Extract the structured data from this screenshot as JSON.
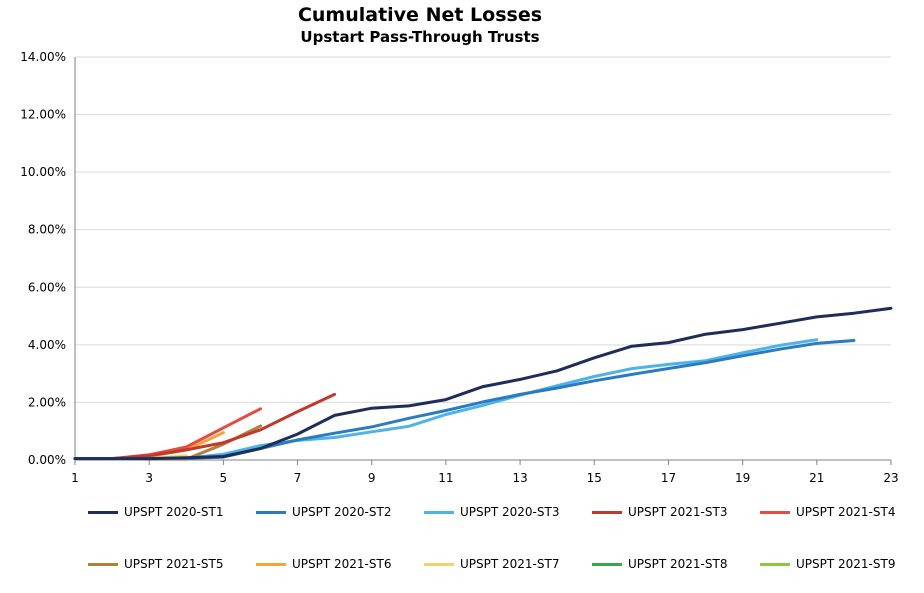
{
  "chart_data": {
    "type": "line",
    "title": "Cumulative Net Losses",
    "subtitle": "Upstart Pass-Through Trusts",
    "xlabel": "",
    "ylabel": "",
    "xlim": [
      1,
      23
    ],
    "ylim": [
      0,
      0.14
    ],
    "x_ticks": [
      "1",
      "3",
      "5",
      "7",
      "9",
      "11",
      "13",
      "15",
      "17",
      "19",
      "21",
      "23"
    ],
    "y_ticks": [
      "0.00%",
      "2.00%",
      "4.00%",
      "6.00%",
      "8.00%",
      "10.00%",
      "12.00%",
      "14.00%"
    ],
    "grid": "horizontal",
    "legend_position": "bottom",
    "series": [
      {
        "name": "UPSPT 2020-ST1",
        "color": "#1f2d5a",
        "x": [
          1,
          2,
          3,
          4,
          5,
          6,
          7,
          8,
          9,
          10,
          11,
          12,
          13,
          14,
          15,
          16,
          17,
          18,
          19,
          20,
          21,
          22,
          23
        ],
        "y": [
          0.0005,
          0.0005,
          0.0005,
          0.0008,
          0.0012,
          0.004,
          0.009,
          0.0155,
          0.018,
          0.0188,
          0.021,
          0.0255,
          0.028,
          0.031,
          0.0355,
          0.0395,
          0.0408,
          0.0437,
          0.0453,
          0.0475,
          0.0497,
          0.051,
          0.0527
        ]
      },
      {
        "name": "UPSPT 2020-ST2",
        "color": "#2b7bc0",
        "x": [
          1,
          2,
          3,
          4,
          5,
          6,
          7,
          8,
          9,
          10,
          11,
          12,
          13,
          14,
          15,
          16,
          17,
          18,
          19,
          20,
          21,
          22
        ],
        "y": [
          0.0005,
          0.0005,
          0.0005,
          0.0006,
          0.001,
          0.004,
          0.007,
          0.0093,
          0.0115,
          0.0145,
          0.0172,
          0.0202,
          0.0228,
          0.025,
          0.0275,
          0.0297,
          0.0318,
          0.0338,
          0.0362,
          0.0385,
          0.0405,
          0.0415
        ]
      },
      {
        "name": "UPSPT 2020-ST3",
        "color": "#4fb3e8",
        "x": [
          1,
          2,
          3,
          4,
          5,
          6,
          7,
          8,
          9,
          10,
          11,
          12,
          13,
          14,
          15,
          16,
          17,
          18,
          19,
          20,
          21
        ],
        "y": [
          0.0005,
          0.0005,
          0.0005,
          0.0006,
          0.002,
          0.005,
          0.0068,
          0.0078,
          0.0098,
          0.0117,
          0.0158,
          0.019,
          0.0225,
          0.0258,
          0.029,
          0.0317,
          0.0332,
          0.0345,
          0.0372,
          0.0398,
          0.0418
        ]
      },
      {
        "name": "UPSPT 2021-ST3",
        "color": "#c0392b",
        "x": [
          1,
          2,
          3,
          4,
          5,
          6,
          7,
          8
        ],
        "y": [
          0.0005,
          0.0005,
          0.0015,
          0.0035,
          0.006,
          0.0105,
          0.0168,
          0.0228
        ]
      },
      {
        "name": "UPSPT 2021-ST4",
        "color": "#e84a3f",
        "x": [
          1,
          2,
          3,
          4,
          5,
          6
        ],
        "y": [
          0.0005,
          0.0005,
          0.0018,
          0.0045,
          0.0112,
          0.0178
        ]
      },
      {
        "name": "UPSPT 2021-ST5",
        "color": "#b0813a",
        "x": [
          1,
          2,
          3,
          4,
          5,
          6
        ],
        "y": [
          0.0005,
          0.0005,
          0.0003,
          0.0003,
          0.0055,
          0.0118
        ]
      },
      {
        "name": "UPSPT 2021-ST6",
        "color": "#f2a33a",
        "x": [
          1,
          2,
          3,
          4,
          5
        ],
        "y": [
          0.0005,
          0.0005,
          0.0012,
          0.0035,
          0.0095
        ]
      },
      {
        "name": "UPSPT 2021-ST7",
        "color": "#f7d06a",
        "x": [
          1,
          2,
          3,
          4
        ],
        "y": [
          0.0005,
          0.0005,
          0.0005,
          0.0015
        ]
      },
      {
        "name": "UPSPT 2021-ST8",
        "color": "#3aa84a",
        "x": [
          1,
          2,
          3
        ],
        "y": [
          0.0005,
          0.0004,
          0.0004
        ]
      },
      {
        "name": "UPSPT 2021-ST9",
        "color": "#8dc63f",
        "x": [
          1,
          2,
          3
        ],
        "y": [
          0.0005,
          0.0005,
          0.0005
        ]
      }
    ]
  }
}
